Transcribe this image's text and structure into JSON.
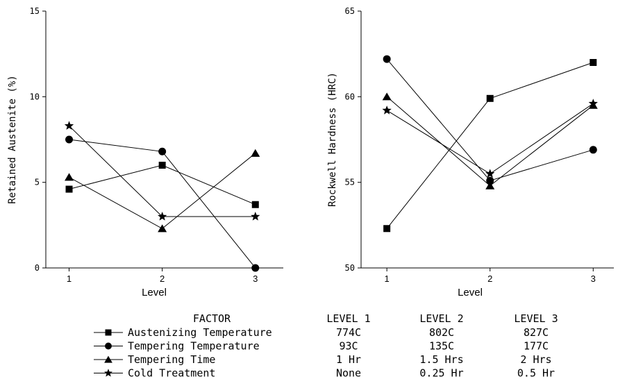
{
  "chart_data": [
    {
      "type": "line",
      "xlabel": "Level",
      "ylabel": "Retained Austenite (%)",
      "x": [
        1,
        2,
        3
      ],
      "xticks": [
        "1",
        "2",
        "3"
      ],
      "xlim": [
        0.75,
        3.3
      ],
      "ylim": [
        0,
        15
      ],
      "yticks": [
        0,
        5,
        10,
        15
      ],
      "grid": false,
      "series": [
        {
          "name": "Austenizing Temperature",
          "marker": "square",
          "values": [
            4.6,
            6.0,
            3.7
          ]
        },
        {
          "name": "Tempering Temperature",
          "marker": "circle",
          "values": [
            7.5,
            6.8,
            0.0
          ]
        },
        {
          "name": "Tempering Time",
          "marker": "triangle",
          "values": [
            5.3,
            2.3,
            6.7
          ]
        },
        {
          "name": "Cold Treatment",
          "marker": "star",
          "values": [
            8.3,
            3.0,
            3.0
          ]
        }
      ]
    },
    {
      "type": "line",
      "xlabel": "Level",
      "ylabel": "Rockwell Hardness (HRC)",
      "x": [
        1,
        2,
        3
      ],
      "xticks": [
        "1",
        "2",
        "3"
      ],
      "xlim": [
        0.75,
        3.2
      ],
      "ylim": [
        50,
        65
      ],
      "yticks": [
        50,
        55,
        60,
        65
      ],
      "grid": false,
      "series": [
        {
          "name": "Austenizing Temperature",
          "marker": "square",
          "values": [
            52.3,
            59.9,
            62.0
          ]
        },
        {
          "name": "Tempering Temperature",
          "marker": "circle",
          "values": [
            62.2,
            55.1,
            56.9
          ]
        },
        {
          "name": "Tempering Time",
          "marker": "triangle",
          "values": [
            60.0,
            54.8,
            59.5
          ]
        },
        {
          "name": "Cold Treatment",
          "marker": "star",
          "values": [
            59.2,
            55.5,
            59.6
          ]
        }
      ]
    }
  ],
  "legend": {
    "header": {
      "factor": "FACTOR",
      "level1": "LEVEL 1",
      "level2": "LEVEL 2",
      "level3": "LEVEL 3"
    },
    "rows": [
      {
        "marker": "square",
        "factor": "Austenizing Temperature",
        "level1": "774C",
        "level2": "802C",
        "level3": "827C"
      },
      {
        "marker": "circle",
        "factor": "Tempering Temperature",
        "level1": "93C",
        "level2": "135C",
        "level3": "177C"
      },
      {
        "marker": "triangle",
        "factor": "Tempering Time",
        "level1": "1 Hr",
        "level2": "1.5 Hrs",
        "level3": "2 Hrs"
      },
      {
        "marker": "star",
        "factor": "Cold Treatment",
        "level1": "None",
        "level2": "0.25 Hr",
        "level3": "0.5 Hr"
      }
    ]
  }
}
